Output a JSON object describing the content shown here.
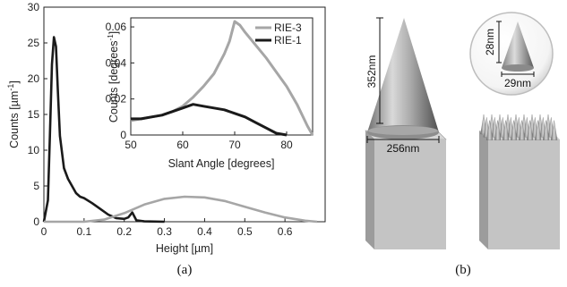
{
  "chart_data": [
    {
      "type": "line",
      "panel_label": "(a)",
      "xlabel": "Height [µm]",
      "ylabel": "Counts [µm",
      "ylabel_superscript": "-1",
      "ylabel_end": "]",
      "xlim": [
        0,
        0.7
      ],
      "ylim": [
        0,
        30
      ],
      "xticks": [
        "0",
        "0.1",
        "0.2",
        "0.3",
        "0.4",
        "0.5",
        "0.6"
      ],
      "yticks": [
        "0",
        "5",
        "10",
        "15",
        "20",
        "25",
        "30"
      ],
      "series": [
        {
          "name": "RIE-1",
          "color": "#1a1a1a",
          "x": [
            0.0,
            0.01,
            0.015,
            0.02,
            0.025,
            0.03,
            0.035,
            0.04,
            0.05,
            0.06,
            0.07,
            0.08,
            0.09,
            0.1,
            0.12,
            0.14,
            0.16,
            0.18,
            0.2,
            0.21,
            0.22,
            0.23,
            0.25,
            0.3
          ],
          "y": [
            0.0,
            3.0,
            12.0,
            22.0,
            25.8,
            24.5,
            18.0,
            12.0,
            7.5,
            6.0,
            5.0,
            4.0,
            3.5,
            3.3,
            2.6,
            1.8,
            1.0,
            0.5,
            0.4,
            0.6,
            1.3,
            0.2,
            0.05,
            0.0
          ]
        },
        {
          "name": "RIE-3",
          "color": "#a6a6a6",
          "x": [
            0.0,
            0.1,
            0.15,
            0.2,
            0.25,
            0.3,
            0.35,
            0.4,
            0.45,
            0.5,
            0.55,
            0.6,
            0.65,
            0.68
          ],
          "y": [
            0.0,
            0.0,
            0.3,
            1.2,
            2.4,
            3.2,
            3.5,
            3.4,
            2.9,
            2.1,
            1.3,
            0.6,
            0.15,
            0.0
          ]
        }
      ]
    },
    {
      "type": "line",
      "inset_of": "(a)",
      "xlabel": "Slant Angle [degrees]",
      "ylabel": "Counts [degrees",
      "ylabel_superscript": "-1",
      "ylabel_end": "]",
      "xlim": [
        50,
        85
      ],
      "ylim": [
        0,
        0.065
      ],
      "xticks": [
        "50",
        "60",
        "70",
        "80"
      ],
      "yticks": [
        "0",
        "0.02",
        "0.04",
        "0.06"
      ],
      "legend": "top-right",
      "series": [
        {
          "name": "RIE-3",
          "color": "#a6a6a6",
          "x": [
            50,
            52,
            54,
            56,
            58,
            60,
            62,
            64,
            66,
            68,
            69,
            70,
            71,
            72,
            74,
            76,
            78,
            80,
            82,
            84,
            85
          ],
          "y": [
            0.008,
            0.009,
            0.01,
            0.011,
            0.013,
            0.016,
            0.021,
            0.027,
            0.034,
            0.045,
            0.052,
            0.063,
            0.061,
            0.057,
            0.05,
            0.043,
            0.035,
            0.027,
            0.017,
            0.005,
            0.0
          ]
        },
        {
          "name": "RIE-1",
          "color": "#1a1a1a",
          "x": [
            50,
            52,
            54,
            56,
            58,
            60,
            62,
            64,
            66,
            68,
            70,
            72,
            74,
            76,
            78,
            80
          ],
          "y": [
            0.009,
            0.009,
            0.01,
            0.011,
            0.013,
            0.015,
            0.017,
            0.016,
            0.015,
            0.014,
            0.012,
            0.01,
            0.007,
            0.004,
            0.001,
            0.0
          ]
        }
      ]
    }
  ],
  "illustration": {
    "panel_label": "(b)",
    "height_label": "352nm",
    "base_label": "256nm",
    "zoom_height_label": "28nm",
    "zoom_base_label": "29nm"
  }
}
